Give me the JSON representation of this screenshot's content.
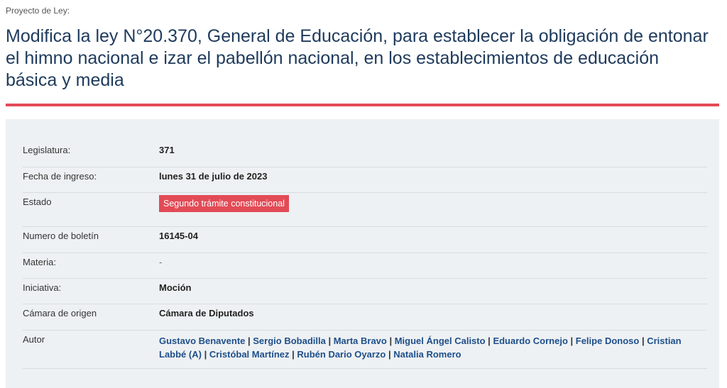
{
  "header": {
    "eyebrow": "Proyecto de Ley:",
    "title": "Modifica la ley N°20.370, General de Educación, para establecer la obligación de entonar el himno nacional e izar el pabellón nacional, en los establecimientos de educación básica y media"
  },
  "details": {
    "legislatura": {
      "label": "Legislatura:",
      "value": "371"
    },
    "fecha": {
      "label": "Fecha de ingreso:",
      "value": "lunes 31 de julio de 2023"
    },
    "estado": {
      "label": "Estado",
      "value": "Segundo trámite constitucional"
    },
    "boletin": {
      "label": "Numero de boletín",
      "value": "16145-04"
    },
    "materia": {
      "label": "Materia:",
      "value": "-"
    },
    "iniciativa": {
      "label": "Iniciativa:",
      "value": "Moción"
    },
    "camara": {
      "label": "Cámara de origen",
      "value": "Cámara de Diputados"
    },
    "autor": {
      "label": "Autor",
      "authors": [
        "Gustavo Benavente",
        "Sergio Bobadilla",
        "Marta Bravo",
        "Miguel Ángel Calisto",
        "Eduardo Cornejo",
        "Felipe Donoso",
        "Cristian Labbé (A)",
        "Cristóbal Martínez",
        "Rubén Dario Oyarzo",
        "Natalia Romero"
      ]
    }
  },
  "colors": {
    "accent": "#e24b56",
    "title": "#1e3a5c",
    "link": "#1e4f8a",
    "panel": "#eef1f3"
  }
}
